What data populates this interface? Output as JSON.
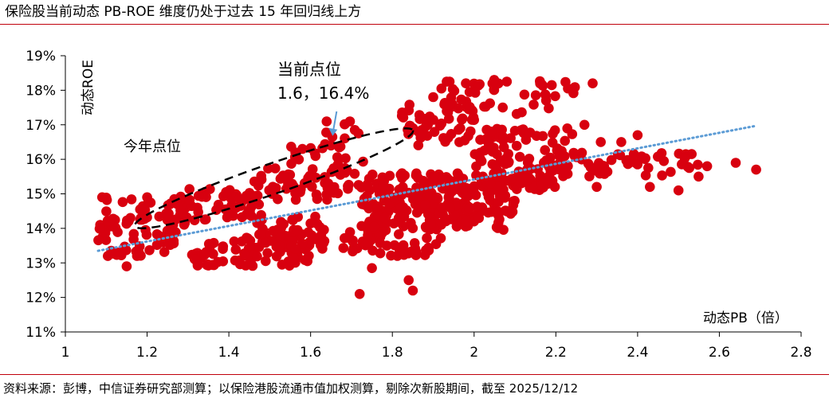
{
  "header": {
    "title": "保险股当前动态 PB-ROE 维度仍处于过去 15 年回归线上方"
  },
  "footer": {
    "source": "资料来源：彭博，中信证券研究部测算；以保险港股流通市值加权测算，剔除次新股期间，截至 2025/12/12"
  },
  "colors": {
    "point": "#d8000f",
    "trend": "#5b9bd5",
    "rule": "#c0000b",
    "arrow": "#5b9bd5"
  },
  "chart_data": {
    "type": "scatter",
    "title": "保险股当前动态 PB-ROE 维度仍处于过去 15 年回归线上方",
    "xlabel": "动态PB（倍）",
    "ylabel": "动态ROE",
    "xlim": [
      1.0,
      2.8
    ],
    "ylim": [
      11,
      19
    ],
    "x_ticks": [
      1,
      1.2,
      1.4,
      1.6,
      1.8,
      2,
      2.2,
      2.4,
      2.6,
      2.8
    ],
    "x_tick_labels": [
      "1",
      "1.2",
      "1.4",
      "1.6",
      "1.8",
      "2",
      "2.2",
      "2.4",
      "2.6",
      "2.8"
    ],
    "y_ticks": [
      11,
      12,
      13,
      14,
      15,
      16,
      17,
      18,
      19
    ],
    "y_tick_labels": [
      "11%",
      "12%",
      "13%",
      "14%",
      "15%",
      "16%",
      "17%",
      "18%",
      "19%"
    ],
    "trendline": {
      "style": "dotted",
      "x": [
        1.08,
        2.69
      ],
      "y": [
        13.35,
        16.97
      ]
    },
    "annotations": {
      "current_label": "当前点位",
      "current_value": "1.6，16.4%",
      "current_point": [
        1.65,
        16.4
      ],
      "this_year_label": "今年点位",
      "this_year_ellipse": {
        "center": [
          1.51,
          15.45
        ],
        "rx": 0.36,
        "ry": 1.15,
        "angle": 19
      }
    },
    "clusters": [
      {
        "x": [
          1.08,
          1.28
        ],
        "y": [
          13.2,
          14.3
        ],
        "n": 55
      },
      {
        "x": [
          1.1,
          1.3
        ],
        "y": [
          14.1,
          14.9
        ],
        "n": 35
      },
      {
        "x": [
          1.28,
          1.48
        ],
        "y": [
          14.2,
          15.2
        ],
        "n": 45
      },
      {
        "x": [
          1.3,
          1.6
        ],
        "y": [
          12.9,
          13.7
        ],
        "n": 70
      },
      {
        "x": [
          1.42,
          1.65
        ],
        "y": [
          13.4,
          14.4
        ],
        "n": 55
      },
      {
        "x": [
          1.45,
          1.72
        ],
        "y": [
          14.8,
          15.8
        ],
        "n": 60
      },
      {
        "x": [
          1.55,
          1.7
        ],
        "y": [
          15.7,
          16.4
        ],
        "n": 12
      },
      {
        "x": [
          1.68,
          1.92
        ],
        "y": [
          13.2,
          14.1
        ],
        "n": 60
      },
      {
        "x": [
          1.72,
          2.0
        ],
        "y": [
          14.0,
          15.2
        ],
        "n": 130
      },
      {
        "x": [
          1.92,
          2.1
        ],
        "y": [
          13.9,
          15.3
        ],
        "n": 60
      },
      {
        "x": [
          1.72,
          2.2
        ],
        "y": [
          15.1,
          15.6
        ],
        "n": 70
      },
      {
        "x": [
          1.82,
          2.0
        ],
        "y": [
          16.4,
          17.6
        ],
        "n": 50
      },
      {
        "x": [
          1.92,
          2.06
        ],
        "y": [
          17.5,
          18.3
        ],
        "n": 25
      },
      {
        "x": [
          2.0,
          2.25
        ],
        "y": [
          16.0,
          16.9
        ],
        "n": 50
      },
      {
        "x": [
          2.0,
          2.2
        ],
        "y": [
          15.2,
          16.0
        ],
        "n": 40
      },
      {
        "x": [
          2.2,
          2.55
        ],
        "y": [
          15.5,
          16.2
        ],
        "n": 55
      },
      {
        "x": [
          1.62,
          1.76
        ],
        "y": [
          15.9,
          17.1
        ],
        "n": 14
      },
      {
        "x": [
          2.15,
          2.26
        ],
        "y": [
          17.7,
          18.3
        ],
        "n": 10
      },
      {
        "x": [
          2.06,
          2.2
        ],
        "y": [
          17.3,
          17.9
        ],
        "n": 8
      }
    ],
    "points": [
      [
        1.09,
        14.9
      ],
      [
        1.2,
        14.9
      ],
      [
        1.15,
        12.9
      ],
      [
        1.72,
        12.1
      ],
      [
        1.85,
        12.2
      ],
      [
        1.84,
        12.5
      ],
      [
        2.69,
        15.7
      ],
      [
        2.64,
        15.9
      ],
      [
        2.57,
        15.8
      ],
      [
        2.5,
        15.1
      ],
      [
        2.43,
        15.2
      ],
      [
        2.3,
        15.2
      ],
      [
        2.27,
        17.0
      ],
      [
        2.31,
        16.5
      ],
      [
        2.36,
        16.5
      ],
      [
        2.4,
        16.7
      ],
      [
        1.65,
        16.4
      ],
      [
        1.58,
        16.3
      ],
      [
        1.75,
        12.85
      ],
      [
        1.53,
        12.95
      ],
      [
        1.97,
        17.15
      ],
      [
        1.92,
        18.05
      ],
      [
        2.08,
        18.25
      ],
      [
        2.19,
        18.15
      ],
      [
        2.29,
        18.2
      ],
      [
        2.07,
        17.5
      ],
      [
        1.98,
        18.2
      ],
      [
        1.94,
        18.25
      ],
      [
        1.9,
        17.8
      ]
    ]
  }
}
